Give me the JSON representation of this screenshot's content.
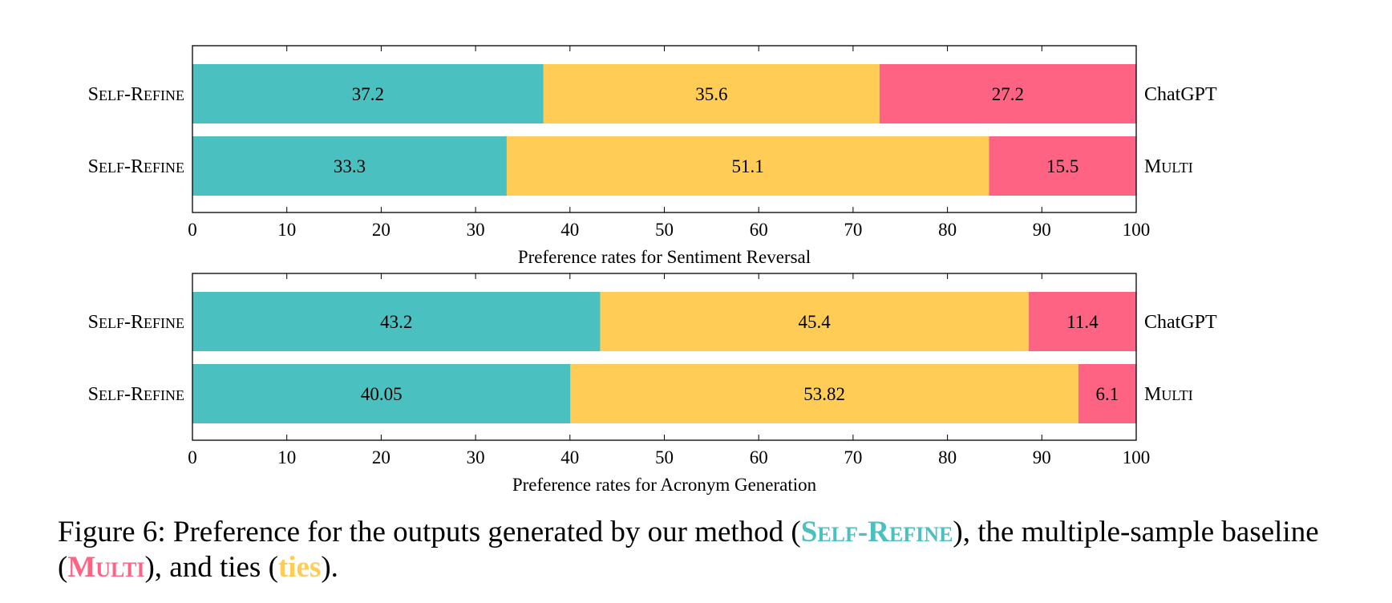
{
  "colors": {
    "self_refine": "#4bc0c0",
    "ties": "#ffcd56",
    "multi": "#ff6384"
  },
  "chart_data": [
    {
      "type": "bar",
      "orientation": "horizontal",
      "stacked": true,
      "xlabel": "Preference rates for Sentiment Reversal",
      "xlim": [
        0,
        100
      ],
      "xticks": [
        0,
        10,
        20,
        30,
        40,
        50,
        60,
        70,
        80,
        90,
        100
      ],
      "rows": [
        {
          "left_label": "Self-Refine",
          "right_label": "ChatGPT",
          "values": [
            37.2,
            35.6,
            27.2
          ],
          "labels": [
            "37.2",
            "35.6",
            "27.2"
          ]
        },
        {
          "left_label": "Self-Refine",
          "right_label": "Multi",
          "values": [
            33.3,
            51.1,
            15.5
          ],
          "labels": [
            "33.3",
            "51.1",
            "15.5"
          ]
        }
      ]
    },
    {
      "type": "bar",
      "orientation": "horizontal",
      "stacked": true,
      "xlabel": "Preference rates for Acronym Generation",
      "xlim": [
        0,
        100
      ],
      "xticks": [
        0,
        10,
        20,
        30,
        40,
        50,
        60,
        70,
        80,
        90,
        100
      ],
      "rows": [
        {
          "left_label": "Self-Refine",
          "right_label": "ChatGPT",
          "values": [
            43.2,
            45.4,
            11.4
          ],
          "labels": [
            "43.2",
            "45.4",
            "11.4"
          ]
        },
        {
          "left_label": "Self-Refine",
          "right_label": "Multi",
          "values": [
            40.05,
            53.82,
            6.1
          ],
          "labels": [
            "40.05",
            "53.82",
            "6.1"
          ]
        }
      ]
    }
  ],
  "caption": {
    "part1": "Figure 6: Preference for the outputs generated by our method (",
    "self_refine": "Self-Refine",
    "part2": "), the multiple-sample baseline (",
    "multi": "Multi",
    "part3": "), and ties (",
    "ties": "ties",
    "part4": ")."
  }
}
